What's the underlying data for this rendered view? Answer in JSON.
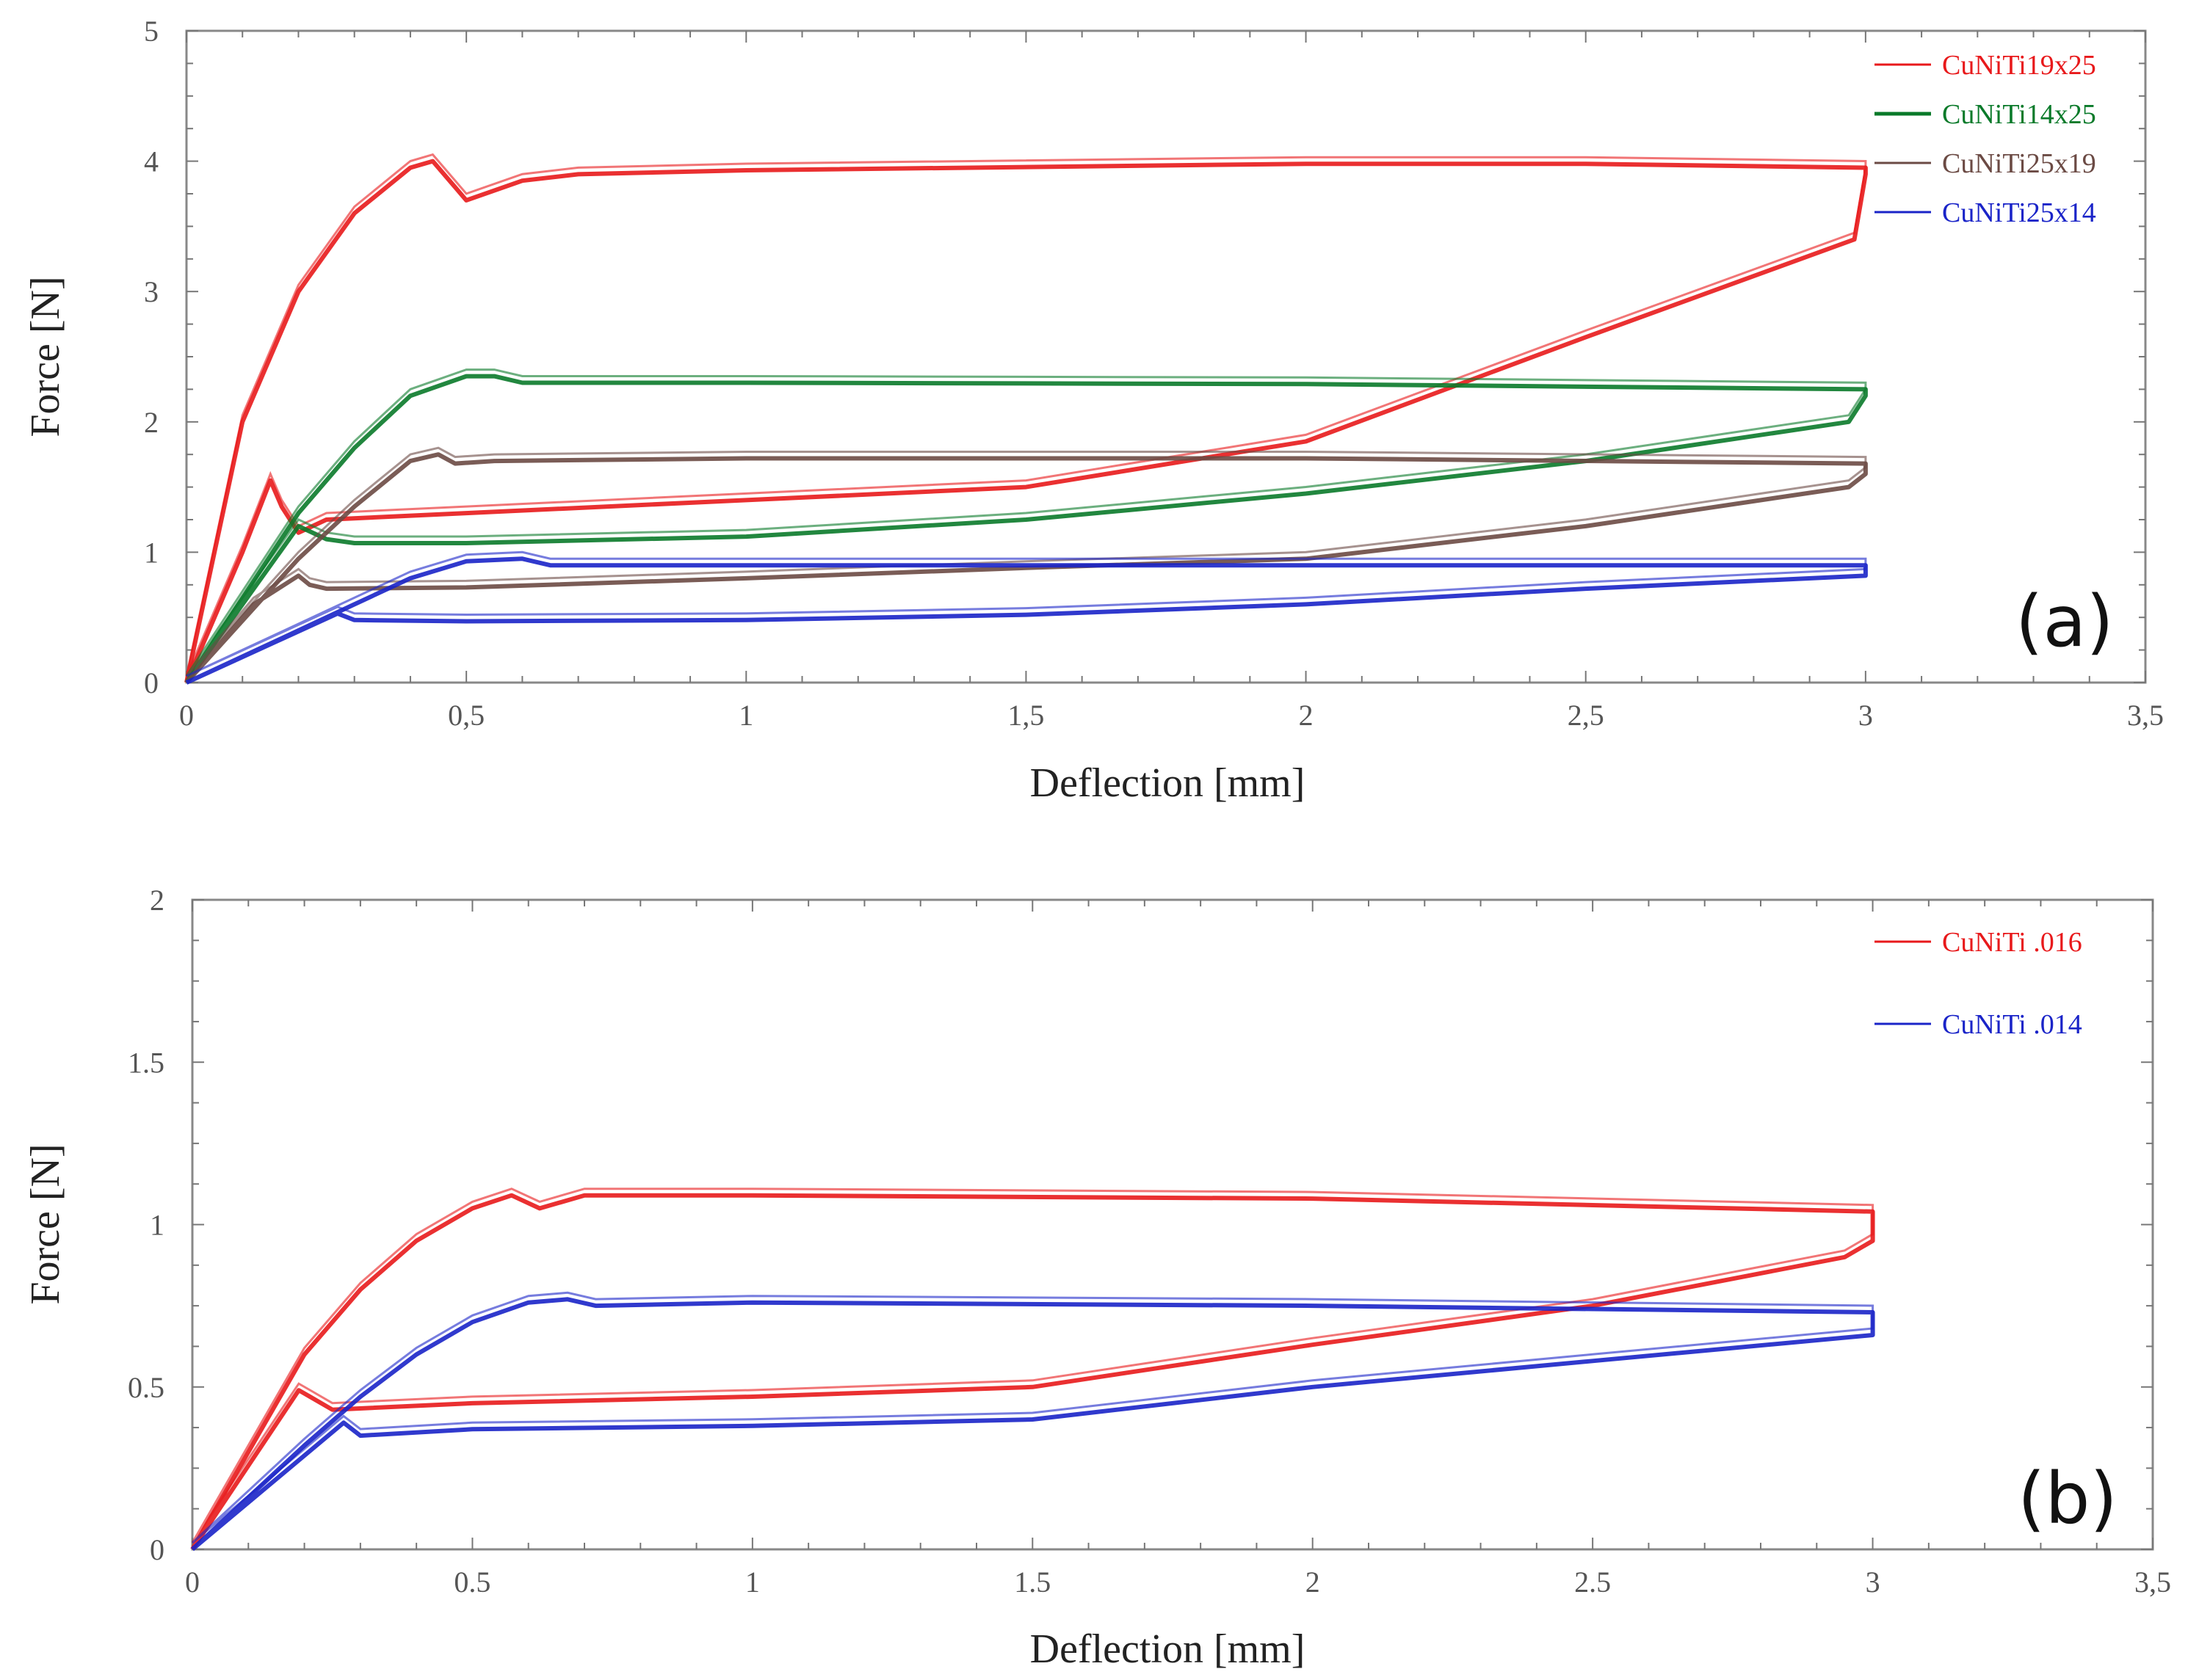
{
  "chart_data": [
    {
      "type": "line",
      "panel_label": "(a)",
      "xlabel": "Deflection [mm]",
      "ylabel": "Force [N]",
      "xlim": [
        0,
        3.5
      ],
      "ylim": [
        0,
        5
      ],
      "xticks": [
        0,
        0.5,
        1,
        1.5,
        2,
        2.5,
        3,
        3.5
      ],
      "xtick_labels": [
        "0",
        "0,5",
        "1",
        "1,5",
        "2",
        "2,5",
        "3",
        "3,5"
      ],
      "yticks": [
        0,
        1,
        2,
        3,
        4,
        5
      ],
      "ytick_labels": [
        "0",
        "1",
        "2",
        "3",
        "4",
        "5"
      ],
      "grid": false,
      "legend_position": "top-right",
      "series": [
        {
          "name": "CuNiTi19x25",
          "color": "#e8191b",
          "x": [
            0,
            0.1,
            0.2,
            0.3,
            0.4,
            0.44,
            0.48,
            0.5,
            0.6,
            0.7,
            1,
            2,
            2.5,
            3,
            3,
            2.98,
            2.5,
            2,
            1.5,
            1,
            0.5,
            0.25,
            0.2,
            0.17,
            0.15,
            0.1,
            0
          ],
          "y": [
            0,
            2.0,
            3.0,
            3.6,
            3.95,
            4.0,
            3.8,
            3.7,
            3.85,
            3.9,
            3.93,
            3.98,
            3.98,
            3.95,
            3.9,
            3.4,
            2.65,
            1.85,
            1.5,
            1.4,
            1.3,
            1.25,
            1.15,
            1.35,
            1.55,
            1.0,
            0
          ]
        },
        {
          "name": "CuNiTi14x25",
          "color": "#0a7a2a",
          "x": [
            0,
            0.2,
            0.3,
            0.4,
            0.5,
            0.55,
            0.6,
            1,
            2,
            3,
            3,
            2.97,
            2.5,
            2,
            1.5,
            1,
            0.5,
            0.3,
            0.25,
            0.2,
            0
          ],
          "y": [
            0,
            1.3,
            1.8,
            2.2,
            2.35,
            2.35,
            2.3,
            2.3,
            2.29,
            2.25,
            2.2,
            2.0,
            1.7,
            1.45,
            1.25,
            1.12,
            1.07,
            1.07,
            1.1,
            1.2,
            0
          ]
        },
        {
          "name": "CuNiTi25x19",
          "color": "#6b4a44",
          "x": [
            0,
            0.2,
            0.3,
            0.4,
            0.45,
            0.48,
            0.55,
            1,
            2,
            3,
            3,
            2.97,
            2.5,
            2,
            1.5,
            1,
            0.5,
            0.25,
            0.22,
            0.2,
            0.12,
            0
          ],
          "y": [
            0,
            0.95,
            1.35,
            1.7,
            1.75,
            1.68,
            1.7,
            1.72,
            1.72,
            1.68,
            1.6,
            1.5,
            1.2,
            0.95,
            0.88,
            0.8,
            0.73,
            0.72,
            0.75,
            0.82,
            0.6,
            0
          ]
        },
        {
          "name": "CuNiTi25x14",
          "color": "#1a24c8",
          "x": [
            0,
            0.2,
            0.3,
            0.4,
            0.5,
            0.6,
            0.65,
            1,
            3,
            3,
            2.5,
            2,
            1.5,
            1,
            0.5,
            0.3,
            0.27,
            0
          ],
          "y": [
            0,
            0.4,
            0.6,
            0.8,
            0.93,
            0.95,
            0.9,
            0.9,
            0.9,
            0.82,
            0.72,
            0.6,
            0.52,
            0.48,
            0.47,
            0.48,
            0.53,
            0
          ]
        }
      ]
    },
    {
      "type": "line",
      "panel_label": "(b)",
      "xlabel": "Deflection [mm]",
      "ylabel": "Force [N]",
      "xlim": [
        0,
        3.5
      ],
      "ylim": [
        0,
        2
      ],
      "xticks": [
        0,
        0.5,
        1,
        1.5,
        2,
        2.5,
        3,
        3.5
      ],
      "xtick_labels": [
        "0",
        "0.5",
        "1",
        "1.5",
        "2",
        "2.5",
        "3",
        "3,5"
      ],
      "yticks": [
        0,
        0.5,
        1,
        1.5,
        2
      ],
      "ytick_labels": [
        "0",
        "0.5",
        "1",
        "1.5",
        "2"
      ],
      "grid": false,
      "legend_position": "top-right",
      "series": [
        {
          "name": "CuNiTi  .016",
          "color": "#e8191b",
          "x": [
            0,
            0.2,
            0.3,
            0.4,
            0.5,
            0.57,
            0.62,
            0.7,
            1,
            2,
            2.5,
            3,
            3,
            2.95,
            2.5,
            2,
            1.5,
            1,
            0.5,
            0.25,
            0.21,
            0.19,
            0
          ],
          "y": [
            0,
            0.6,
            0.8,
            0.95,
            1.05,
            1.09,
            1.05,
            1.09,
            1.09,
            1.08,
            1.06,
            1.04,
            0.95,
            0.9,
            0.75,
            0.63,
            0.5,
            0.47,
            0.45,
            0.43,
            0.47,
            0.49,
            0
          ]
        },
        {
          "name": "CuNiTi  .014",
          "color": "#1a24c8",
          "x": [
            0,
            0.2,
            0.3,
            0.4,
            0.5,
            0.6,
            0.67,
            0.72,
            1,
            2,
            3,
            3,
            2.5,
            2,
            1.5,
            1,
            0.5,
            0.3,
            0.27,
            0
          ],
          "y": [
            0,
            0.32,
            0.47,
            0.6,
            0.7,
            0.76,
            0.77,
            0.75,
            0.76,
            0.75,
            0.73,
            0.66,
            0.58,
            0.5,
            0.4,
            0.38,
            0.37,
            0.35,
            0.39,
            0
          ]
        }
      ]
    }
  ]
}
